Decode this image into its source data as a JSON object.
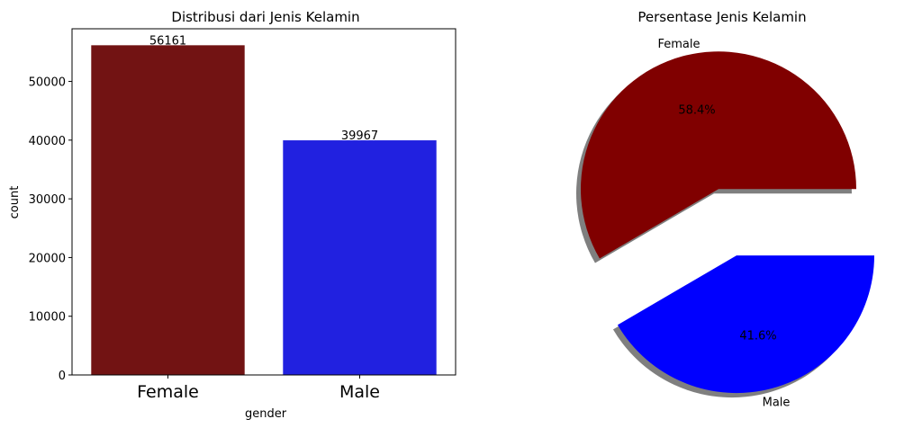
{
  "chart_data": [
    {
      "type": "bar",
      "title": "Distribusi dari Jenis Kelamin",
      "xlabel": "gender",
      "ylabel": "count",
      "categories": [
        "Female",
        "Male"
      ],
      "values": [
        56161,
        39967
      ],
      "value_labels": [
        "56161",
        "39967"
      ],
      "colors": [
        "#721313",
        "#2121e0"
      ],
      "ylim": [
        0,
        58969
      ],
      "yticks": [
        0,
        10000,
        20000,
        30000,
        40000,
        50000
      ],
      "grid": false
    },
    {
      "type": "pie",
      "title": "Persentase Jenis Kelamin",
      "labels": [
        "Female",
        "Male"
      ],
      "values": [
        56161,
        39967
      ],
      "percent_labels": [
        "58.4%",
        "41.6%"
      ],
      "colors": [
        "#800000",
        "#0000ff"
      ],
      "explode": [
        0.1,
        0.4
      ],
      "shadow": true
    }
  ]
}
